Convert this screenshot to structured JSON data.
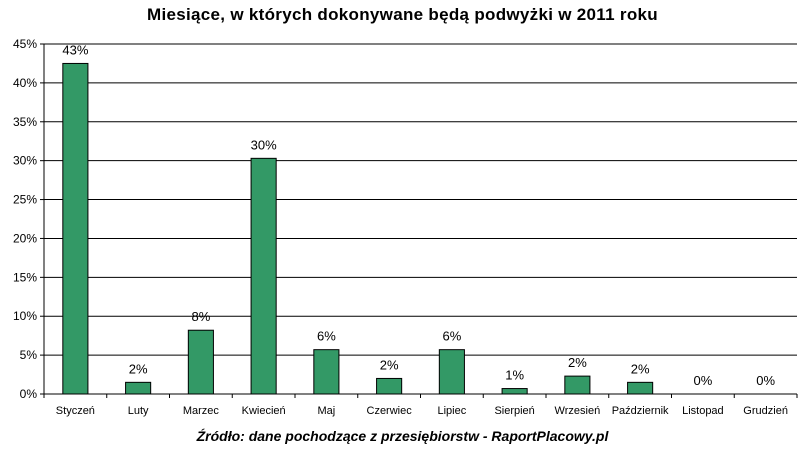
{
  "title": "Miesiące, w których dokonywane będą podwyżki w 2011 roku",
  "source": "Źródło: dane pochodzące z przesiębiorstw - RaportPlacowy.pl",
  "colors": {
    "bar": "#339966",
    "bar_stroke": "#000000",
    "grid": "#000000"
  },
  "chart_data": {
    "type": "bar",
    "title": "Miesiące, w których dokonywane będą podwyżki w 2011 roku",
    "xlabel": "",
    "ylabel": "",
    "ylim": [
      0,
      45
    ],
    "yticks": [
      0,
      5,
      10,
      15,
      20,
      25,
      30,
      35,
      40,
      45
    ],
    "ytick_labels": [
      "0%",
      "5%",
      "10%",
      "15%",
      "20%",
      "25%",
      "30%",
      "35%",
      "40%",
      "45%"
    ],
    "grid": true,
    "legend": "none",
    "categories": [
      "Styczeń",
      "Luty",
      "Marzec",
      "Kwiecień",
      "Maj",
      "Czerwiec",
      "Lipiec",
      "Sierpień",
      "Wrzesień",
      "Październik",
      "Listopad",
      "Grudzień"
    ],
    "values": [
      42.5,
      1.5,
      8.2,
      30.3,
      5.7,
      2.0,
      5.7,
      0.7,
      2.3,
      1.5,
      0,
      0
    ],
    "data_labels": [
      "43%",
      "2%",
      "8%",
      "30%",
      "6%",
      "2%",
      "6%",
      "1%",
      "2%",
      "2%",
      "0%",
      "0%"
    ]
  }
}
